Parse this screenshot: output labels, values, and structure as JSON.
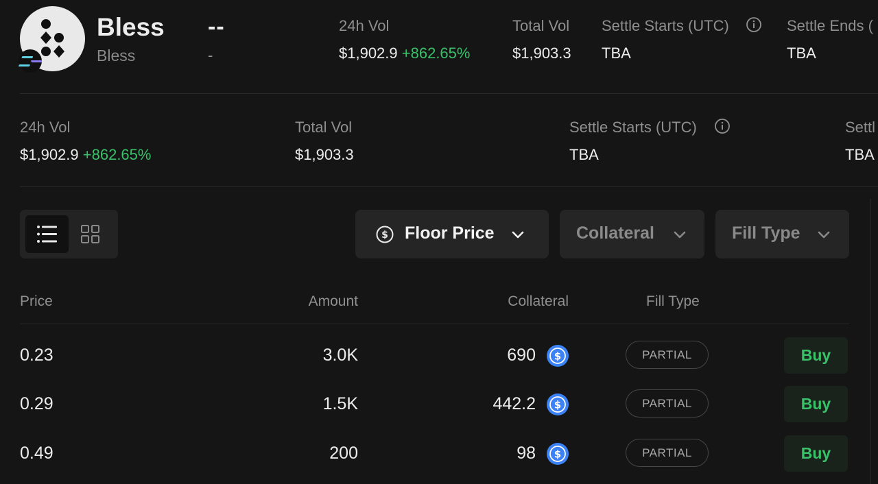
{
  "token": {
    "symbol": "Bless",
    "name": "Bless",
    "price": "--",
    "price_change": "-"
  },
  "header_stats": [
    {
      "label": "24h Vol",
      "value": "$1,902.9",
      "change": "+862.65%"
    },
    {
      "label": "Total Vol",
      "value": "$1,903.3"
    },
    {
      "label": "Settle Starts (UTC)",
      "value": "TBA"
    },
    {
      "label": "Settle Ends (",
      "value": "TBA"
    }
  ],
  "stats": [
    {
      "label": "24h Vol",
      "value": "$1,902.9",
      "change": "+862.65%"
    },
    {
      "label": "Total Vol",
      "value": "$1,903.3"
    },
    {
      "label": "Settle Starts (UTC)",
      "value": "TBA"
    },
    {
      "label": "Settl",
      "value": "TBA"
    }
  ],
  "filters": {
    "floor_price": "Floor Price",
    "collateral": "Collateral",
    "fill_type": "Fill Type"
  },
  "table": {
    "headers": {
      "price": "Price",
      "amount": "Amount",
      "collateral": "Collateral",
      "fill_type": "Fill Type"
    },
    "rows": [
      {
        "price": "0.23",
        "amount": "3.0K",
        "collateral": "690",
        "fill_type": "PARTIAL",
        "action": "Buy"
      },
      {
        "price": "0.29",
        "amount": "1.5K",
        "collateral": "442.2",
        "fill_type": "PARTIAL",
        "action": "Buy"
      },
      {
        "price": "0.49",
        "amount": "200",
        "collateral": "98",
        "fill_type": "PARTIAL",
        "action": "Buy"
      }
    ]
  },
  "colors": {
    "accent_green": "#39c169",
    "background": "#151515",
    "usdc_blue": "#3b82f6"
  },
  "icons": [
    "token-logo",
    "solana-chain-icon",
    "info-icon",
    "dollar-circle-icon",
    "chevron-down-icon",
    "list-view-icon",
    "grid-view-icon",
    "usdc-icon"
  ]
}
